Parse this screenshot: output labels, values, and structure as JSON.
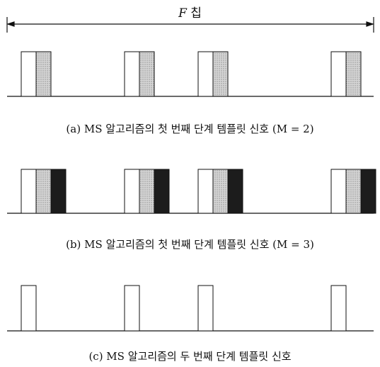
{
  "frame_label": {
    "variable": "F",
    "unit": "칩"
  },
  "panels": [
    {
      "id": "a",
      "caption": "(a) MS 알고리즘의 첫 번째 단계 템플릿 신호 (M = 2)",
      "segments": [
        "white",
        "gray"
      ],
      "groups": 4
    },
    {
      "id": "b",
      "caption": "(b) MS 알고리즘의 첫 번째 단계 템플릿 신호 (M = 3)",
      "segments": [
        "white",
        "gray",
        "black"
      ],
      "groups": 4
    },
    {
      "id": "c",
      "caption": "(c) MS 알고리즘의 두 번째 단계 템플릿 신호",
      "segments": [
        "white"
      ],
      "groups": 4
    }
  ],
  "colors": {
    "white": "#ffffff",
    "gray": "#c4c4c4",
    "black": "#1c1c1c",
    "line": "#111111"
  }
}
